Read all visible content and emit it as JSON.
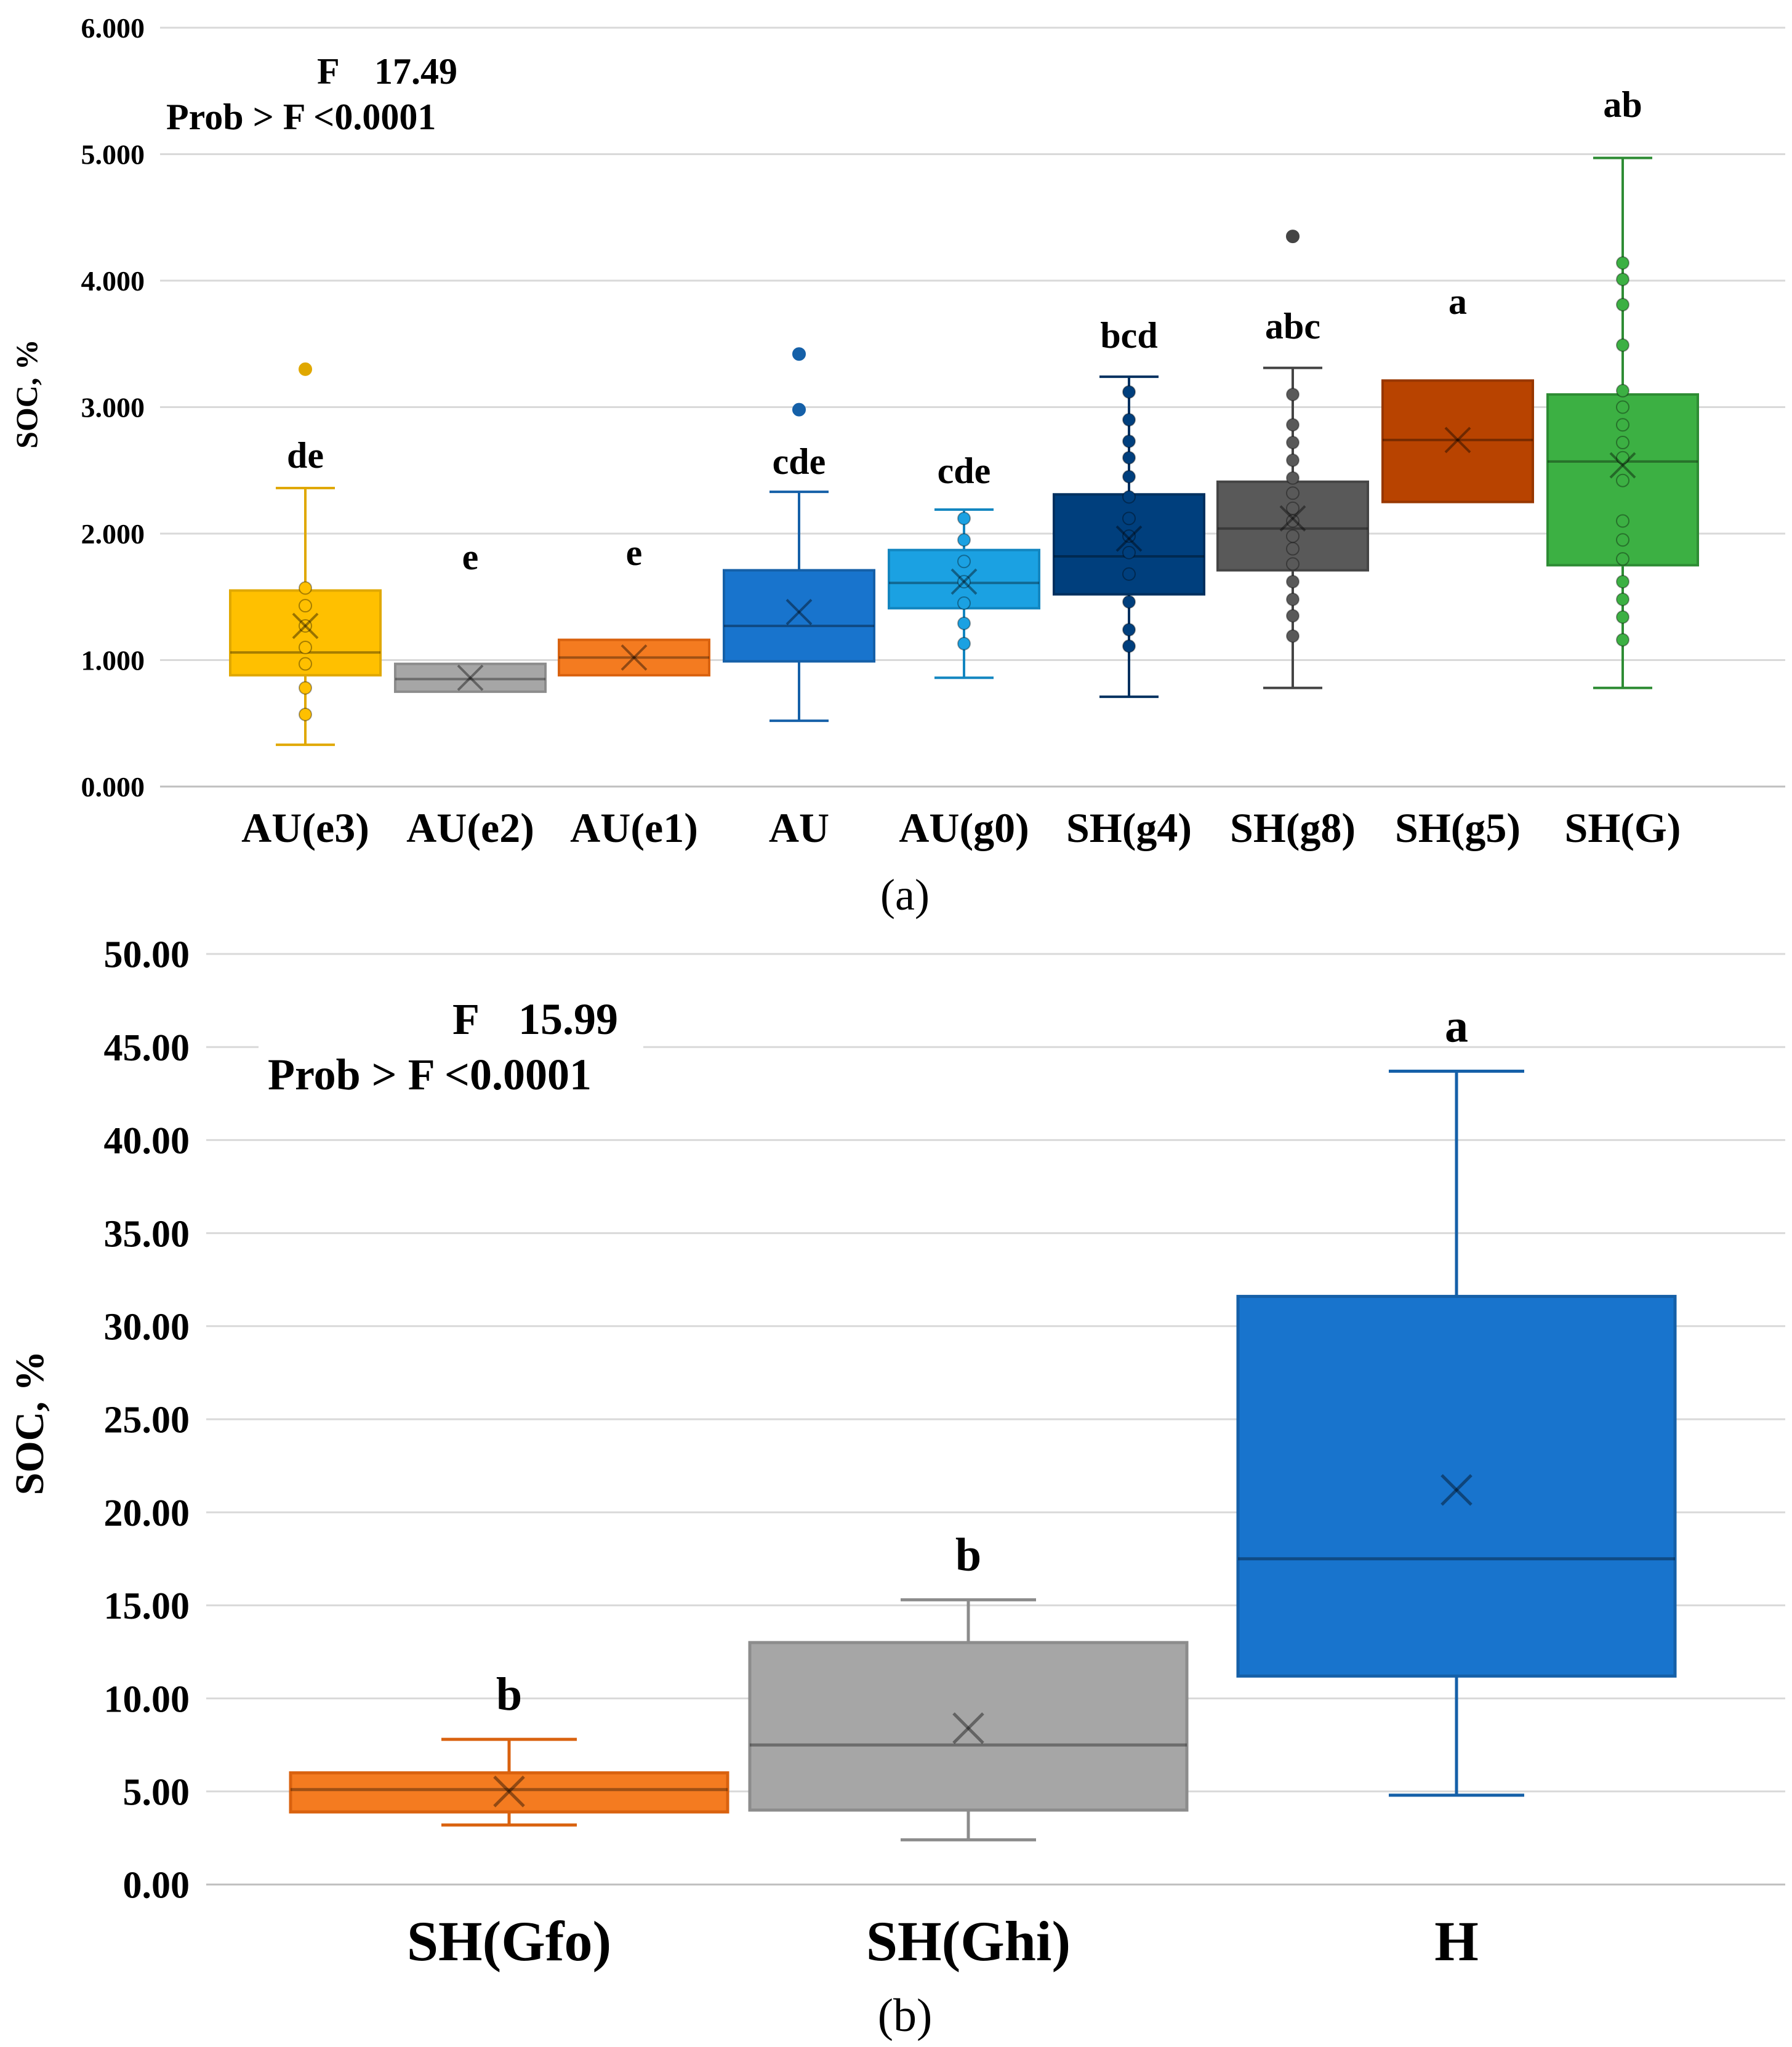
{
  "chart_data": [
    {
      "type": "box",
      "panel_label": "(a)",
      "ylabel": "SOC, %",
      "ylim": [
        0,
        6
      ],
      "yticks": [
        "0.000",
        "1.000",
        "2.000",
        "3.000",
        "4.000",
        "5.000",
        "6.000"
      ],
      "grid": true,
      "stats": {
        "f_label": "F",
        "f_value": "17.49",
        "prob_label": "Prob > F <0.0001"
      },
      "groups": [
        {
          "name": "AU(e3)",
          "color": "#FFC000",
          "stroke": "#E0A800",
          "min": 0.33,
          "q1": 0.88,
          "median": 1.06,
          "q3": 1.55,
          "max": 2.36,
          "mean": 1.27,
          "letter": "de",
          "points": [
            0.57,
            0.78,
            0.97,
            1.1,
            1.27,
            1.43,
            1.57,
            3.3
          ],
          "outliers": [
            3.3
          ]
        },
        {
          "name": "AU(e2)",
          "color": "#A6A6A6",
          "stroke": "#8C8C8C",
          "min": 0.75,
          "q1": 0.75,
          "median": 0.85,
          "q3": 0.97,
          "max": 0.97,
          "mean": 0.86,
          "letter": "e",
          "points": [],
          "outliers": []
        },
        {
          "name": "AU(e1)",
          "color": "#F47B20",
          "stroke": "#D9620F",
          "min": 0.88,
          "q1": 0.88,
          "median": 1.02,
          "q3": 1.16,
          "max": 1.16,
          "mean": 1.02,
          "letter": "e",
          "points": [],
          "outliers": []
        },
        {
          "name": "AU",
          "color": "#1874CD",
          "stroke": "#1560A8",
          "min": 0.52,
          "q1": 0.99,
          "median": 1.27,
          "q3": 1.71,
          "max": 2.33,
          "mean": 1.38,
          "letter": "cde",
          "points": [
            2.98,
            3.42
          ],
          "outliers": [
            2.98,
            3.42
          ]
        },
        {
          "name": "AU(g0)",
          "color": "#1BA1E2",
          "stroke": "#1386C0",
          "min": 0.86,
          "q1": 1.41,
          "median": 1.61,
          "q3": 1.87,
          "max": 2.19,
          "mean": 1.62,
          "letter": "cde",
          "points": [
            1.13,
            1.29,
            1.45,
            1.62,
            1.78,
            1.95,
            2.12
          ],
          "outliers": []
        },
        {
          "name": "SH(g4)",
          "color": "#003F7D",
          "stroke": "#00305F",
          "min": 0.71,
          "q1": 1.52,
          "median": 1.82,
          "q3": 2.31,
          "max": 3.24,
          "mean": 1.96,
          "letter": "bcd",
          "points": [
            1.11,
            1.24,
            1.46,
            1.68,
            1.85,
            1.98,
            2.12,
            2.29,
            2.45,
            2.6,
            2.73,
            2.9,
            3.12
          ],
          "outliers": []
        },
        {
          "name": "SH(g8)",
          "color": "#595959",
          "stroke": "#454545",
          "min": 0.78,
          "q1": 1.71,
          "median": 2.04,
          "q3": 2.41,
          "max": 3.31,
          "mean": 2.12,
          "letter": "abc",
          "points": [
            1.19,
            1.35,
            1.48,
            1.62,
            1.76,
            1.88,
            1.98,
            2.1,
            2.2,
            2.32,
            2.44,
            2.58,
            2.72,
            2.86,
            3.1,
            4.35
          ],
          "outliers": [
            4.35
          ]
        },
        {
          "name": "SH(g5)",
          "color": "#B84300",
          "stroke": "#983700",
          "min": 2.25,
          "q1": 2.25,
          "median": 2.74,
          "q3": 3.21,
          "max": 3.21,
          "mean": 2.74,
          "letter": "a",
          "points": [],
          "outliers": []
        },
        {
          "name": "SH(G)",
          "color": "#3CB043",
          "stroke": "#2E8C34",
          "min": 0.78,
          "q1": 1.75,
          "median": 2.57,
          "q3": 3.1,
          "max": 4.97,
          "mean": 2.54,
          "letter": "ab",
          "points": [
            1.16,
            1.34,
            1.48,
            1.62,
            1.8,
            1.95,
            2.1,
            2.42,
            2.6,
            2.72,
            2.86,
            3.0,
            3.13,
            3.49,
            3.81,
            4.01,
            4.14
          ],
          "outliers": []
        }
      ]
    },
    {
      "type": "box",
      "panel_label": "(b)",
      "ylabel": "SOC, %",
      "ylim": [
        0,
        50
      ],
      "yticks": [
        "0.00",
        "5.00",
        "10.00",
        "15.00",
        "20.00",
        "25.00",
        "30.00",
        "35.00",
        "40.00",
        "45.00",
        "50.00"
      ],
      "grid": true,
      "stats": {
        "f_label": "F",
        "f_value": "15.99",
        "prob_label": "Prob > F <0.0001"
      },
      "groups": [
        {
          "name": "SH(Gfo)",
          "color": "#F47B20",
          "stroke": "#D9620F",
          "min": 3.2,
          "q1": 3.9,
          "median": 5.1,
          "q3": 6.0,
          "max": 7.8,
          "mean": 5.0,
          "letter": "b",
          "points": [],
          "outliers": []
        },
        {
          "name": "SH(Ghi)",
          "color": "#A6A6A6",
          "stroke": "#8C8C8C",
          "min": 2.4,
          "q1": 4.0,
          "median": 7.5,
          "q3": 13.0,
          "max": 15.3,
          "mean": 8.4,
          "letter": "b",
          "points": [],
          "outliers": []
        },
        {
          "name": "H",
          "color": "#1874CD",
          "stroke": "#1560A8",
          "min": 4.8,
          "q1": 11.2,
          "median": 17.5,
          "q3": 31.6,
          "max": 43.7,
          "mean": 21.2,
          "letter": "a",
          "points": [],
          "outliers": []
        }
      ]
    }
  ]
}
